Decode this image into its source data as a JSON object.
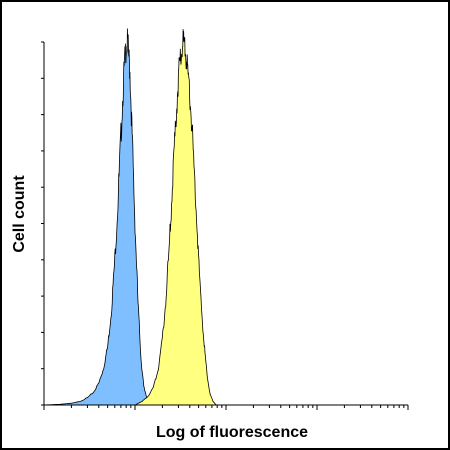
{
  "chart_data": {
    "type": "area",
    "xlabel": "Log of fluorescence",
    "ylabel": "Cell count",
    "xscale": "log",
    "x_decades": 4,
    "x_tick_labels": [],
    "y_tick_labels": [],
    "grid": false,
    "legend": "none",
    "series": [
      {
        "color": "#7fbfff",
        "points": [
          [
            1.0,
            0
          ],
          [
            1.5,
            0.2
          ],
          [
            2.0,
            0.5
          ],
          [
            2.5,
            1
          ],
          [
            3.0,
            2
          ],
          [
            3.5,
            3.5
          ],
          [
            4.0,
            6
          ],
          [
            4.5,
            10
          ],
          [
            5.0,
            16
          ],
          [
            5.5,
            26
          ],
          [
            6.0,
            40
          ],
          [
            6.5,
            56
          ],
          [
            7.0,
            74
          ],
          [
            7.5,
            90
          ],
          [
            7.9,
            98
          ],
          [
            8.3,
            100
          ],
          [
            8.8,
            92
          ],
          [
            9.3,
            74
          ],
          [
            10.0,
            50
          ],
          [
            10.8,
            28
          ],
          [
            11.7,
            12
          ],
          [
            12.5,
            5
          ],
          [
            13.5,
            2
          ],
          [
            15.0,
            0.7
          ],
          [
            18.0,
            0.2
          ],
          [
            22.0,
            0
          ]
        ]
      },
      {
        "color": "#ffff80",
        "points": [
          [
            10.0,
            0
          ],
          [
            12.0,
            1
          ],
          [
            14.0,
            2.5
          ],
          [
            16.0,
            5
          ],
          [
            18.0,
            10
          ],
          [
            20.0,
            18
          ],
          [
            22.0,
            30
          ],
          [
            24.0,
            45
          ],
          [
            26.0,
            62
          ],
          [
            28.0,
            78
          ],
          [
            30.0,
            90
          ],
          [
            32.0,
            97
          ],
          [
            34.0,
            100
          ],
          [
            36.0,
            98
          ],
          [
            38.0,
            92
          ],
          [
            41.0,
            82
          ],
          [
            44.0,
            68
          ],
          [
            48.0,
            50
          ],
          [
            52.0,
            32
          ],
          [
            57.0,
            18
          ],
          [
            62.0,
            8
          ],
          [
            67.0,
            3
          ],
          [
            72.0,
            1
          ],
          [
            78.0,
            0
          ]
        ]
      }
    ],
    "ylim": [
      0,
      100
    ],
    "xlim": [
      1,
      10000
    ]
  }
}
